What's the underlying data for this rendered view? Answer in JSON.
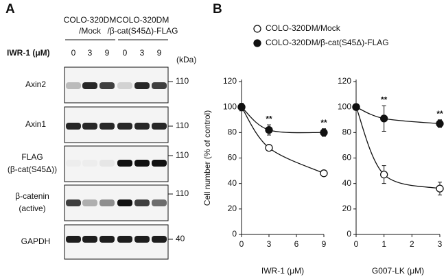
{
  "panel_labels": [
    "A",
    "B"
  ],
  "blot": {
    "groups": [
      [
        "COLO-320DM",
        "/Mock"
      ],
      [
        "COLO-320DM",
        "/β-cat(S45Δ)-FLAG"
      ]
    ],
    "treatment": "IWR-1 (μM)",
    "lanes": [
      "0",
      "3",
      "9",
      "0",
      "3",
      "9"
    ],
    "mw_unit": "(kDa)",
    "rows": [
      {
        "label": [
          "Axin2"
        ],
        "mw": "110"
      },
      {
        "label": [
          "Axin1"
        ],
        "mw": "110"
      },
      {
        "label": [
          "FLAG",
          "(β-cat(S45Δ))"
        ],
        "mw": "110"
      },
      {
        "label": [
          "β-catenin",
          "(active)"
        ],
        "mw": "110"
      },
      {
        "label": [
          "GAPDH"
        ],
        "mw": "40"
      }
    ]
  },
  "chart_data": [
    {
      "type": "line",
      "x_label": "IWR-1 (μM)",
      "y_label": "Cell number (% of control)",
      "x": [
        0,
        3,
        9
      ],
      "xlim": [
        0,
        9
      ],
      "xticks": [
        0,
        3,
        6,
        9
      ],
      "ylim": [
        0,
        120
      ],
      "yticks": [
        0,
        20,
        40,
        60,
        80,
        100,
        120
      ],
      "series": [
        {
          "name": "COLO-320DM/Mock",
          "color": "#ffffff",
          "values": [
            100,
            68,
            48
          ],
          "errors": [
            2,
            2,
            1
          ]
        },
        {
          "name": "COLO-320DM/β-cat(S45Δ)-FLAG",
          "color": "#111111",
          "values": [
            100,
            82,
            80
          ],
          "errors": [
            3,
            4,
            3
          ]
        }
      ],
      "annotations": [
        {
          "text": "**",
          "x": 3
        },
        {
          "text": "**",
          "x": 9
        }
      ]
    },
    {
      "type": "line",
      "x_label": "G007-LK (μM)",
      "x": [
        0,
        1,
        3
      ],
      "xlim": [
        0,
        3
      ],
      "xticks": [
        0,
        1,
        2,
        3
      ],
      "ylim": [
        0,
        120
      ],
      "yticks": [
        0,
        20,
        40,
        60,
        80,
        100,
        120
      ],
      "series": [
        {
          "color": "#ffffff",
          "values": [
            100,
            47,
            36
          ],
          "errors": [
            2,
            7,
            5
          ]
        },
        {
          "color": "#111111",
          "values": [
            100,
            91,
            87
          ],
          "errors": [
            2,
            10,
            3
          ]
        }
      ],
      "annotations": [
        {
          "text": "**",
          "x": 1
        },
        {
          "text": "**",
          "x": 3
        }
      ]
    }
  ]
}
